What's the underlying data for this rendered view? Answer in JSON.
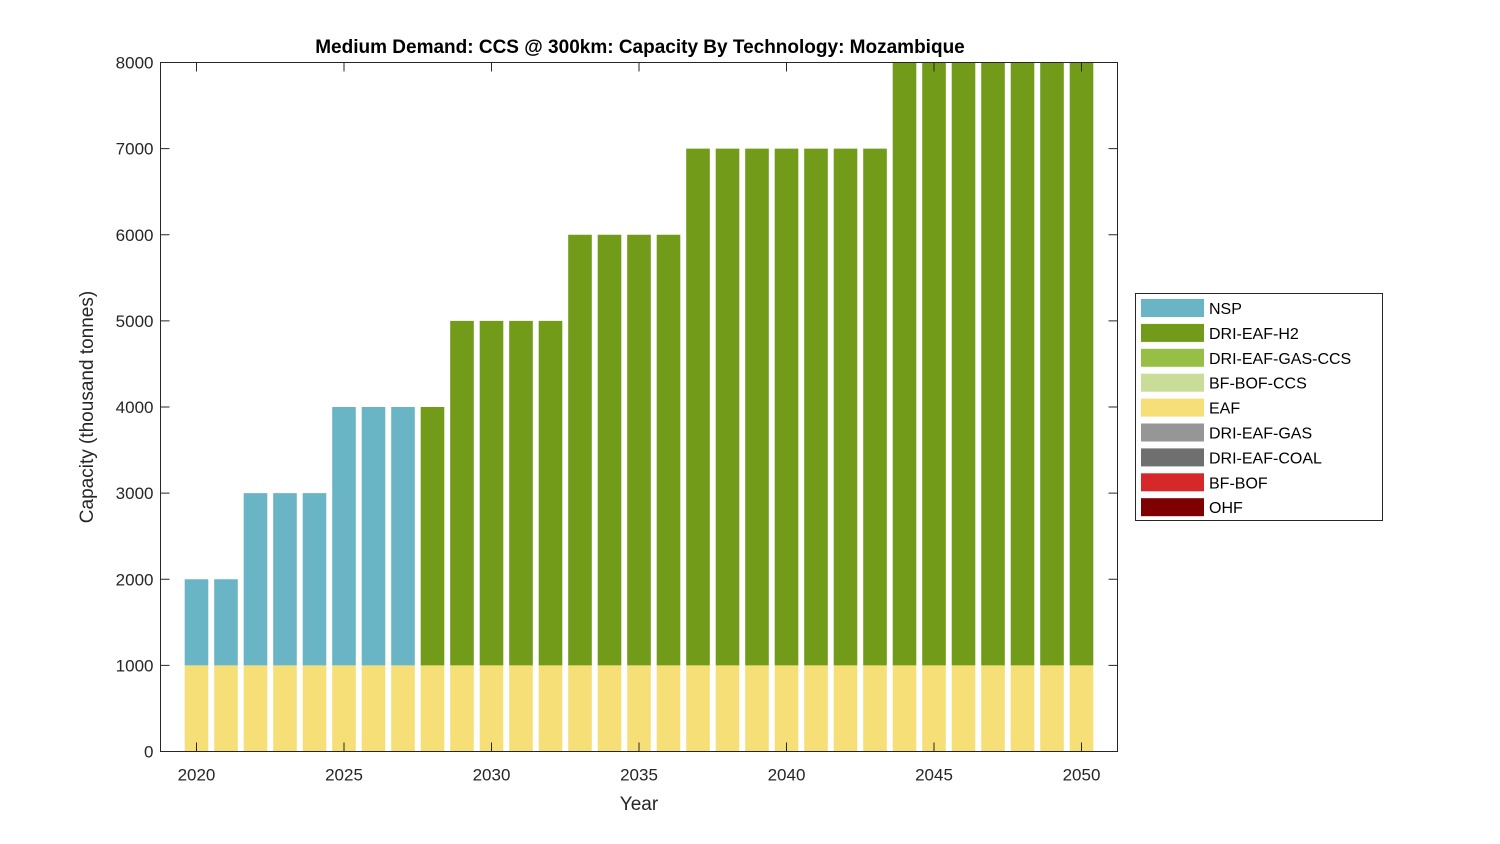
{
  "chart_data": {
    "type": "bar",
    "stacked": true,
    "title": "Medium Demand: CCS @ 300km: Capacity By Technology: Mozambique",
    "xlabel": "Year",
    "ylabel": "Capacity (thousand tonnes)",
    "ylim": [
      0,
      8000
    ],
    "yticks": [
      0,
      1000,
      2000,
      3000,
      4000,
      5000,
      6000,
      7000,
      8000
    ],
    "xticks": [
      2020,
      2025,
      2030,
      2035,
      2040,
      2045,
      2050
    ],
    "legend_position": "right",
    "grid": false,
    "x": [
      2020,
      2021,
      2022,
      2023,
      2024,
      2025,
      2026,
      2027,
      2028,
      2029,
      2030,
      2031,
      2032,
      2033,
      2034,
      2035,
      2036,
      2037,
      2038,
      2039,
      2040,
      2041,
      2042,
      2043,
      2044,
      2045,
      2046,
      2047,
      2048,
      2049,
      2050
    ],
    "series": [
      {
        "name": "OHF",
        "color": "#7f0000",
        "values": [
          0,
          0,
          0,
          0,
          0,
          0,
          0,
          0,
          0,
          0,
          0,
          0,
          0,
          0,
          0,
          0,
          0,
          0,
          0,
          0,
          0,
          0,
          0,
          0,
          0,
          0,
          0,
          0,
          0,
          0,
          0
        ]
      },
      {
        "name": "BF-BOF",
        "color": "#d62828",
        "values": [
          0,
          0,
          0,
          0,
          0,
          0,
          0,
          0,
          0,
          0,
          0,
          0,
          0,
          0,
          0,
          0,
          0,
          0,
          0,
          0,
          0,
          0,
          0,
          0,
          0,
          0,
          0,
          0,
          0,
          0,
          0
        ]
      },
      {
        "name": "DRI-EAF-COAL",
        "color": "#6f6f6f",
        "values": [
          0,
          0,
          0,
          0,
          0,
          0,
          0,
          0,
          0,
          0,
          0,
          0,
          0,
          0,
          0,
          0,
          0,
          0,
          0,
          0,
          0,
          0,
          0,
          0,
          0,
          0,
          0,
          0,
          0,
          0,
          0
        ]
      },
      {
        "name": "DRI-EAF-GAS",
        "color": "#969696",
        "values": [
          0,
          0,
          0,
          0,
          0,
          0,
          0,
          0,
          0,
          0,
          0,
          0,
          0,
          0,
          0,
          0,
          0,
          0,
          0,
          0,
          0,
          0,
          0,
          0,
          0,
          0,
          0,
          0,
          0,
          0,
          0
        ]
      },
      {
        "name": "EAF",
        "color": "#f7df78",
        "values": [
          1000,
          1000,
          1000,
          1000,
          1000,
          1000,
          1000,
          1000,
          1000,
          1000,
          1000,
          1000,
          1000,
          1000,
          1000,
          1000,
          1000,
          1000,
          1000,
          1000,
          1000,
          1000,
          1000,
          1000,
          1000,
          1000,
          1000,
          1000,
          1000,
          1000,
          1000
        ]
      },
      {
        "name": "BF-BOF-CCS",
        "color": "#c9dc98",
        "values": [
          0,
          0,
          0,
          0,
          0,
          0,
          0,
          0,
          0,
          0,
          0,
          0,
          0,
          0,
          0,
          0,
          0,
          0,
          0,
          0,
          0,
          0,
          0,
          0,
          0,
          0,
          0,
          0,
          0,
          0,
          0
        ]
      },
      {
        "name": "DRI-EAF-GAS-CCS",
        "color": "#98bf45",
        "values": [
          0,
          0,
          0,
          0,
          0,
          0,
          0,
          0,
          0,
          0,
          0,
          0,
          0,
          0,
          0,
          0,
          0,
          0,
          0,
          0,
          0,
          0,
          0,
          0,
          0,
          0,
          0,
          0,
          0,
          0,
          0
        ]
      },
      {
        "name": "DRI-EAF-H2",
        "color": "#719b19",
        "values": [
          0,
          0,
          0,
          0,
          0,
          0,
          0,
          0,
          3000,
          4000,
          4000,
          4000,
          4000,
          5000,
          5000,
          5000,
          5000,
          6000,
          6000,
          6000,
          6000,
          6000,
          6000,
          6000,
          7000,
          7000,
          7000,
          7000,
          7000,
          7000,
          7000
        ]
      },
      {
        "name": "NSP",
        "color": "#69b5c6",
        "values": [
          1000,
          1000,
          2000,
          2000,
          2000,
          3000,
          3000,
          3000,
          0,
          0,
          0,
          0,
          0,
          0,
          0,
          0,
          0,
          0,
          0,
          0,
          0,
          0,
          0,
          0,
          0,
          0,
          0,
          0,
          0,
          0,
          0
        ]
      }
    ],
    "legend": [
      "NSP",
      "DRI-EAF-H2",
      "DRI-EAF-GAS-CCS",
      "BF-BOF-CCS",
      "EAF",
      "DRI-EAF-GAS",
      "DRI-EAF-COAL",
      "BF-BOF",
      "OHF"
    ]
  }
}
